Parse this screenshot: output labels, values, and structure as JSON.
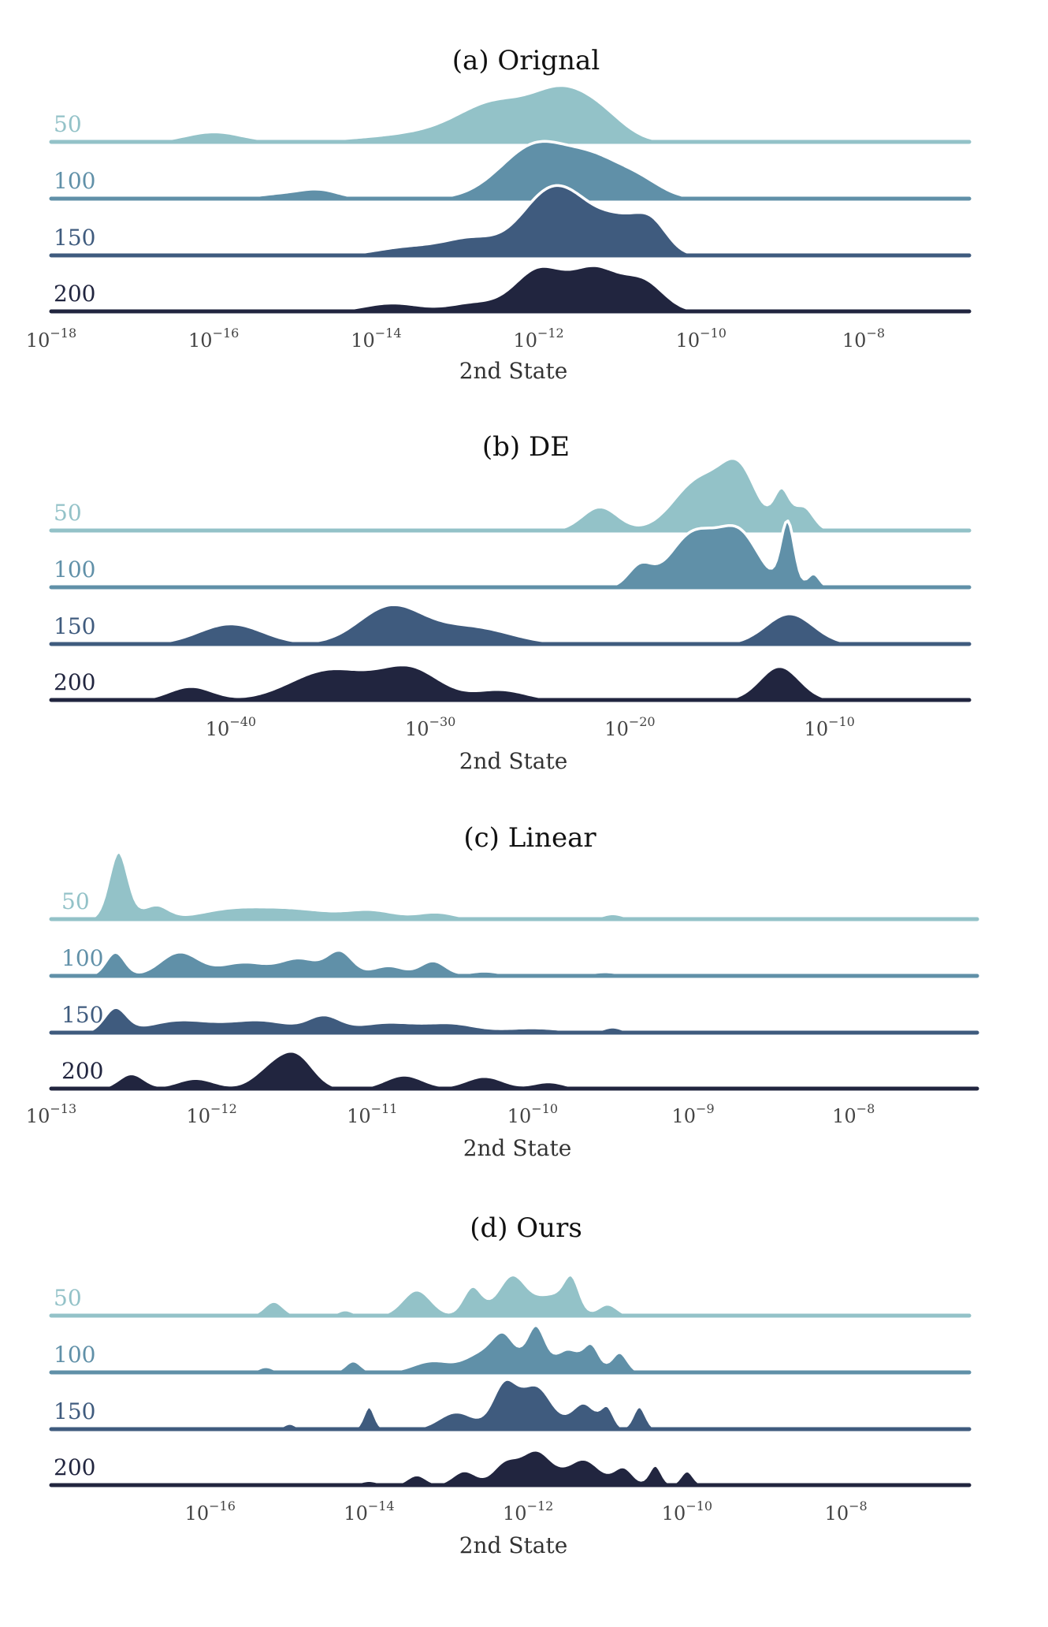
{
  "palette": [
    "#93c2c8",
    "#6090a8",
    "#3f5b7e",
    "#21253f"
  ],
  "chart_data": [
    {
      "type": "area",
      "subtype": "ridgeline",
      "title": "(a) Orignal",
      "xlabel": "2nd State",
      "xscale": "log",
      "xlim_exp": [
        -18,
        -6.7
      ],
      "xticks": [
        {
          "base": "10",
          "exp": "−18",
          "value": -18
        },
        {
          "base": "10",
          "exp": "−16",
          "value": -16
        },
        {
          "base": "10",
          "exp": "−14",
          "value": -14
        },
        {
          "base": "10",
          "exp": "−12",
          "value": -12
        },
        {
          "base": "10",
          "exp": "−10",
          "value": -10
        },
        {
          "base": "10",
          "exp": "−8",
          "value": -8
        }
      ],
      "series": [
        {
          "name": "50",
          "peaks": [
            [
              -16.0,
              0.18,
              0.35
            ],
            [
              -13.0,
              0.2,
              0.9
            ],
            [
              -12.5,
              0.55,
              0.45
            ],
            [
              -11.7,
              0.75,
              0.35
            ],
            [
              -11.2,
              0.35,
              0.3
            ]
          ]
        },
        {
          "name": "100",
          "peaks": [
            [
              -15.2,
              0.08,
              0.3
            ],
            [
              -14.7,
              0.15,
              0.25
            ],
            [
              -12.0,
              1.0,
              0.45
            ],
            [
              -11.3,
              0.45,
              0.3
            ],
            [
              -10.8,
              0.35,
              0.3
            ]
          ]
        },
        {
          "name": "150",
          "peaks": [
            [
              -13.6,
              0.15,
              0.4
            ],
            [
              -12.8,
              0.3,
              0.35
            ],
            [
              -12.0,
              0.75,
              0.3
            ],
            [
              -11.6,
              0.8,
              0.3
            ],
            [
              -11.0,
              0.6,
              0.3
            ],
            [
              -10.6,
              0.45,
              0.2
            ]
          ]
        },
        {
          "name": "200",
          "peaks": [
            [
              -13.8,
              0.15,
              0.35
            ],
            [
              -12.8,
              0.15,
              0.3
            ],
            [
              -12.0,
              0.75,
              0.3
            ],
            [
              -11.3,
              0.75,
              0.3
            ],
            [
              -10.7,
              0.5,
              0.25
            ]
          ]
        }
      ]
    },
    {
      "type": "area",
      "subtype": "ridgeline",
      "title": "(b) DE",
      "xlabel": "2nd State",
      "xscale": "log",
      "xlim_exp": [
        -49,
        -3
      ],
      "xticks": [
        {
          "base": "10",
          "exp": "−40",
          "value": -40
        },
        {
          "base": "10",
          "exp": "−30",
          "value": -30
        },
        {
          "base": "10",
          "exp": "−20",
          "value": -20
        },
        {
          "base": "10",
          "exp": "−10",
          "value": -10
        }
      ],
      "series": [
        {
          "name": "50",
          "peaks": [
            [
              -21.5,
              0.35,
              0.9
            ],
            [
              -16.5,
              0.75,
              1.3
            ],
            [
              -14.5,
              0.8,
              0.9
            ],
            [
              -12.4,
              0.55,
              0.4
            ],
            [
              -11.3,
              0.35,
              0.5
            ]
          ]
        },
        {
          "name": "100",
          "peaks": [
            [
              -19.5,
              0.3,
              0.6
            ],
            [
              -16.8,
              0.8,
              1.2
            ],
            [
              -14.5,
              0.75,
              1.0
            ],
            [
              -12.1,
              0.95,
              0.35
            ],
            [
              -10.8,
              0.2,
              0.3
            ]
          ]
        },
        {
          "name": "150",
          "peaks": [
            [
              -40.0,
              0.3,
              1.6
            ],
            [
              -32.0,
              0.55,
              1.6
            ],
            [
              -28.0,
              0.25,
              2.0
            ],
            [
              -12.0,
              0.45,
              1.2
            ]
          ]
        },
        {
          "name": "200",
          "peaks": [
            [
              -42.0,
              0.2,
              1.1
            ],
            [
              -35.0,
              0.45,
              2.0
            ],
            [
              -31.0,
              0.45,
              1.5
            ],
            [
              -26.5,
              0.15,
              1.3
            ],
            [
              -12.5,
              0.5,
              1.0
            ]
          ]
        }
      ]
    },
    {
      "type": "area",
      "subtype": "ridgeline",
      "title": "(c) Linear",
      "xlabel": "2nd State",
      "xscale": "log",
      "xlim_exp": [
        -13,
        -7.23
      ],
      "xticks": [
        {
          "base": "10",
          "exp": "−13",
          "value": -13
        },
        {
          "base": "10",
          "exp": "−12",
          "value": -12
        },
        {
          "base": "10",
          "exp": "−11",
          "value": -11
        },
        {
          "base": "10",
          "exp": "−10",
          "value": -10
        },
        {
          "base": "10",
          "exp": "−9",
          "value": -9
        },
        {
          "base": "10",
          "exp": "−8",
          "value": -8
        }
      ],
      "series": [
        {
          "name": "50",
          "peaks": [
            [
              -12.58,
              1.0,
              0.06
            ],
            [
              -12.35,
              0.2,
              0.08
            ],
            [
              -11.9,
              0.12,
              0.2
            ],
            [
              -11.5,
              0.15,
              0.25
            ],
            [
              -11.0,
              0.12,
              0.15
            ],
            [
              -10.6,
              0.1,
              0.12
            ],
            [
              -9.5,
              0.08,
              0.07
            ]
          ]
        },
        {
          "name": "100",
          "peaks": [
            [
              -12.6,
              0.35,
              0.06
            ],
            [
              -12.2,
              0.35,
              0.12
            ],
            [
              -11.8,
              0.2,
              0.15
            ],
            [
              -11.45,
              0.25,
              0.12
            ],
            [
              -11.2,
              0.35,
              0.08
            ],
            [
              -10.9,
              0.15,
              0.1
            ],
            [
              -10.62,
              0.22,
              0.08
            ],
            [
              -10.3,
              0.07,
              0.1
            ],
            [
              -9.55,
              0.06,
              0.1
            ]
          ]
        },
        {
          "name": "150",
          "peaks": [
            [
              -12.6,
              0.35,
              0.07
            ],
            [
              -12.2,
              0.18,
              0.2
            ],
            [
              -11.7,
              0.18,
              0.2
            ],
            [
              -11.3,
              0.22,
              0.1
            ],
            [
              -10.9,
              0.15,
              0.2
            ],
            [
              -10.5,
              0.12,
              0.15
            ],
            [
              -10.0,
              0.07,
              0.2
            ],
            [
              -9.5,
              0.08,
              0.06
            ],
            [
              -8.9,
              0.03,
              0.06
            ]
          ]
        },
        {
          "name": "200",
          "peaks": [
            [
              -12.5,
              0.22,
              0.08
            ],
            [
              -12.1,
              0.15,
              0.12
            ],
            [
              -11.6,
              0.35,
              0.12
            ],
            [
              -11.45,
              0.35,
              0.1
            ],
            [
              -10.8,
              0.2,
              0.12
            ],
            [
              -10.3,
              0.18,
              0.12
            ],
            [
              -9.9,
              0.1,
              0.1
            ],
            [
              -9.4,
              0.03,
              0.05
            ],
            [
              -8.6,
              0.03,
              0.05
            ]
          ]
        }
      ]
    },
    {
      "type": "area",
      "subtype": "ridgeline",
      "title": "(d) Ours",
      "xlabel": "2nd State",
      "xscale": "log",
      "xlim_exp": [
        -18,
        -6.45
      ],
      "xticks": [
        {
          "base": "10",
          "exp": "−16",
          "value": -16
        },
        {
          "base": "10",
          "exp": "−14",
          "value": -14
        },
        {
          "base": "10",
          "exp": "−12",
          "value": -12
        },
        {
          "base": "10",
          "exp": "−10",
          "value": -10
        },
        {
          "base": "10",
          "exp": "−8",
          "value": -8
        }
      ],
      "series": [
        {
          "name": "50",
          "peaks": [
            [
              -17.0,
              0.06,
              0.15
            ],
            [
              -15.2,
              0.25,
              0.12
            ],
            [
              -14.3,
              0.1,
              0.1
            ],
            [
              -13.4,
              0.45,
              0.18
            ],
            [
              -12.7,
              0.5,
              0.12
            ],
            [
              -12.2,
              0.7,
              0.18
            ],
            [
              -11.7,
              0.35,
              0.2
            ],
            [
              -11.45,
              0.55,
              0.1
            ],
            [
              -11.0,
              0.2,
              0.12
            ]
          ]
        },
        {
          "name": "100",
          "peaks": [
            [
              -15.3,
              0.1,
              0.1
            ],
            [
              -14.2,
              0.2,
              0.1
            ],
            [
              -13.2,
              0.2,
              0.25
            ],
            [
              -12.6,
              0.3,
              0.2
            ],
            [
              -12.3,
              0.6,
              0.15
            ],
            [
              -11.9,
              0.8,
              0.12
            ],
            [
              -11.5,
              0.4,
              0.15
            ],
            [
              -11.2,
              0.45,
              0.1
            ],
            [
              -10.85,
              0.35,
              0.1
            ]
          ]
        },
        {
          "name": "150",
          "peaks": [
            [
              -15.0,
              0.1,
              0.08
            ],
            [
              -14.0,
              0.4,
              0.07
            ],
            [
              -12.9,
              0.3,
              0.22
            ],
            [
              -12.3,
              0.75,
              0.15
            ],
            [
              -11.9,
              0.75,
              0.2
            ],
            [
              -11.3,
              0.45,
              0.15
            ],
            [
              -11.0,
              0.35,
              0.08
            ],
            [
              -10.6,
              0.4,
              0.08
            ]
          ]
        },
        {
          "name": "200",
          "peaks": [
            [
              -14.0,
              0.08,
              0.12
            ],
            [
              -13.4,
              0.18,
              0.12
            ],
            [
              -12.8,
              0.25,
              0.15
            ],
            [
              -12.3,
              0.35,
              0.15
            ],
            [
              -11.9,
              0.6,
              0.2
            ],
            [
              -11.3,
              0.45,
              0.2
            ],
            [
              -10.8,
              0.3,
              0.12
            ],
            [
              -10.4,
              0.35,
              0.08
            ],
            [
              -10.0,
              0.25,
              0.08
            ]
          ]
        }
      ]
    }
  ]
}
